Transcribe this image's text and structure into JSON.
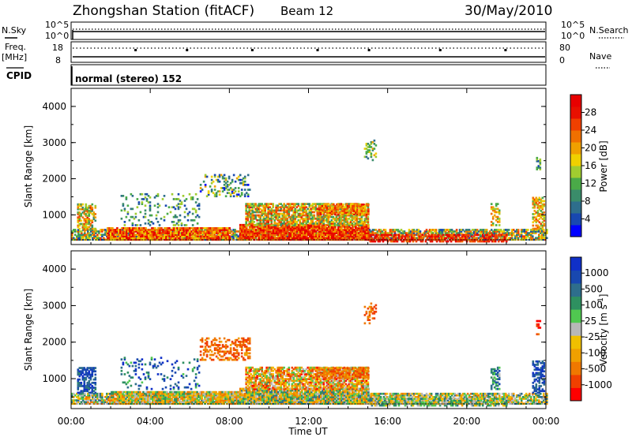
{
  "header": {
    "station": "Zhongshan Station (fitACF)",
    "beam": "Beam 12",
    "date": "30/May/2010"
  },
  "panels": {
    "nsky_label": "N.Sky",
    "nsky_ticks": [
      "10^5",
      "10^0"
    ],
    "nsearch_label": "N.Search",
    "nsearch_ticks": [
      "10^5",
      "10^0"
    ],
    "freq_label": "Freq.",
    "freq_unit": "[MHz]",
    "freq_ticks": [
      "18",
      "8"
    ],
    "nave_label": "Nave",
    "nave_ticks": [
      "80",
      "0"
    ],
    "cpid_label": "CPID",
    "cpid_value": "normal (stereo) 152"
  },
  "chart_data": [
    {
      "type": "heatmap",
      "name_printed": "Power",
      "colorbar_label": "Power [dB]",
      "colorbar_ticks": [
        "28",
        "24",
        "20",
        "16",
        "12",
        "8",
        "4"
      ],
      "colorbar_colors": [
        "#0000ff",
        "#1848b0",
        "#2e6e8c",
        "#3a8c6a",
        "#4aaa48",
        "#a0cc30",
        "#f0d000",
        "#f0a000",
        "#f07000",
        "#f04000",
        "#e81000",
        "#e80000"
      ],
      "ylabel": "Slant Range [km]",
      "yticks": [
        "4000",
        "3000",
        "2000",
        "1000"
      ],
      "ylim": [
        180,
        4500
      ],
      "xlim": [
        "00:00",
        "24:00"
      ],
      "regions": [
        {
          "t0": 0.0,
          "t1": 24.0,
          "r0": 300,
          "r1": 600,
          "lvl": 0.45,
          "spread": 0.35,
          "density": 0.75
        },
        {
          "t0": 0.3,
          "t1": 1.2,
          "r0": 600,
          "r1": 1300,
          "lvl": 0.55,
          "spread": 0.3,
          "density": 0.6
        },
        {
          "t0": 1.8,
          "t1": 8.0,
          "r0": 300,
          "r1": 650,
          "lvl": 0.75,
          "spread": 0.25,
          "density": 0.85
        },
        {
          "t0": 2.5,
          "t1": 6.5,
          "r0": 700,
          "r1": 1600,
          "lvl": 0.3,
          "spread": 0.2,
          "density": 0.15
        },
        {
          "t0": 6.5,
          "t1": 9.0,
          "r0": 1500,
          "r1": 2100,
          "lvl": 0.35,
          "spread": 0.3,
          "density": 0.25
        },
        {
          "t0": 8.5,
          "t1": 15.0,
          "r0": 300,
          "r1": 750,
          "lvl": 0.8,
          "spread": 0.2,
          "density": 0.9
        },
        {
          "t0": 8.8,
          "t1": 15.0,
          "r0": 700,
          "r1": 1300,
          "lvl": 0.55,
          "spread": 0.3,
          "density": 0.75
        },
        {
          "t0": 12.5,
          "t1": 15.0,
          "r0": 1000,
          "r1": 1300,
          "lvl": 0.7,
          "spread": 0.2,
          "density": 0.6
        },
        {
          "t0": 14.8,
          "t1": 15.4,
          "r0": 2500,
          "r1": 3050,
          "lvl": 0.4,
          "spread": 0.2,
          "density": 0.3
        },
        {
          "t0": 15.0,
          "t1": 22.0,
          "r0": 250,
          "r1": 450,
          "lvl": 0.85,
          "spread": 0.15,
          "density": 0.6
        },
        {
          "t0": 21.2,
          "t1": 21.6,
          "r0": 700,
          "r1": 1300,
          "lvl": 0.55,
          "spread": 0.2,
          "density": 0.5
        },
        {
          "t0": 23.3,
          "t1": 23.9,
          "r0": 600,
          "r1": 1500,
          "lvl": 0.6,
          "spread": 0.25,
          "density": 0.6
        },
        {
          "t0": 23.5,
          "t1": 23.7,
          "r0": 2200,
          "r1": 2600,
          "lvl": 0.3,
          "spread": 0.2,
          "density": 0.4
        }
      ]
    },
    {
      "type": "heatmap",
      "name_printed": "Velocity",
      "colorbar_label": "Velocity [m s",
      "colorbar_exponent": "-1",
      "colorbar_close": "]",
      "colorbar_ticks": [
        "1000",
        "500",
        "100",
        "25",
        "-25",
        "-100",
        "-500",
        "-1000"
      ],
      "colorbar_colors": [
        "#ff0000",
        "#f04000",
        "#f07800",
        "#f0a000",
        "#f0c000",
        "#b8b8b8",
        "#50c850",
        "#2e9060",
        "#2e6e8c",
        "#1848b0",
        "#1030c8"
      ],
      "ylabel": "Slant Range [km]",
      "yticks": [
        "4000",
        "3000",
        "2000",
        "1000"
      ],
      "ylim": [
        180,
        4500
      ],
      "xlim": [
        "00:00",
        "24:00"
      ],
      "regions": [
        {
          "t0": 0.0,
          "t1": 24.0,
          "r0": 300,
          "r1": 600,
          "lvl": 0.5,
          "spread": 0.3,
          "density": 0.75
        },
        {
          "t0": 0.3,
          "t1": 1.2,
          "r0": 600,
          "r1": 1300,
          "lvl": 0.85,
          "spread": 0.15,
          "density": 0.6
        },
        {
          "t0": 2.0,
          "t1": 8.5,
          "r0": 300,
          "r1": 650,
          "lvl": 0.45,
          "spread": 0.25,
          "density": 0.85
        },
        {
          "t0": 2.5,
          "t1": 6.5,
          "r0": 700,
          "r1": 1600,
          "lvl": 0.8,
          "spread": 0.2,
          "density": 0.15
        },
        {
          "t0": 6.5,
          "t1": 9.0,
          "r0": 1500,
          "r1": 2100,
          "lvl": 0.2,
          "spread": 0.1,
          "density": 0.45
        },
        {
          "t0": 8.5,
          "t1": 15.0,
          "r0": 300,
          "r1": 750,
          "lvl": 0.5,
          "spread": 0.3,
          "density": 0.9
        },
        {
          "t0": 8.8,
          "t1": 15.0,
          "r0": 700,
          "r1": 1300,
          "lvl": 0.35,
          "spread": 0.3,
          "density": 0.75
        },
        {
          "t0": 12.5,
          "t1": 15.0,
          "r0": 1000,
          "r1": 1300,
          "lvl": 0.2,
          "spread": 0.1,
          "density": 0.6
        },
        {
          "t0": 14.8,
          "t1": 15.4,
          "r0": 2500,
          "r1": 3050,
          "lvl": 0.2,
          "spread": 0.1,
          "density": 0.3
        },
        {
          "t0": 15.0,
          "t1": 22.0,
          "r0": 250,
          "r1": 450,
          "lvl": 0.55,
          "spread": 0.2,
          "density": 0.6
        },
        {
          "t0": 21.2,
          "t1": 21.6,
          "r0": 700,
          "r1": 1300,
          "lvl": 0.7,
          "spread": 0.2,
          "density": 0.5
        },
        {
          "t0": 23.3,
          "t1": 23.9,
          "r0": 600,
          "r1": 1500,
          "lvl": 0.85,
          "spread": 0.1,
          "density": 0.6
        },
        {
          "t0": 23.5,
          "t1": 23.7,
          "r0": 2200,
          "r1": 2600,
          "lvl": 0.1,
          "spread": 0.1,
          "density": 0.4
        }
      ]
    }
  ],
  "time_axis": {
    "ticks": [
      "00:00",
      "04:00",
      "08:00",
      "12:00",
      "16:00",
      "20:00",
      "00:00"
    ],
    "label": "Time UT"
  }
}
